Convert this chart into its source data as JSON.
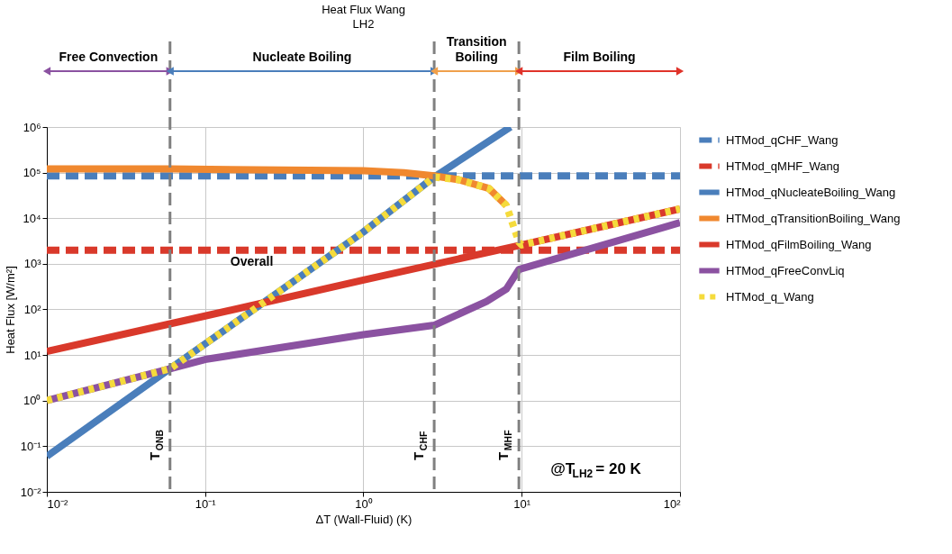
{
  "chart_data": {
    "type": "line",
    "title": "Heat Flux Wang",
    "subtitle": "LH2",
    "xlabel": "ΔT (Wall-Fluid) (K)",
    "ylabel": "Heat Flux [W/m²]",
    "log": "xy",
    "grid": true,
    "legend": "right",
    "xlim": [
      0.01,
      100
    ],
    "ylim": [
      0.01,
      1000000
    ],
    "xticks": [
      {
        "value": 0.01,
        "label": "10⁻²"
      },
      {
        "value": 0.1,
        "label": "10⁻¹"
      },
      {
        "value": 1,
        "label": "10⁰"
      },
      {
        "value": 10,
        "label": "10¹"
      },
      {
        "value": 100,
        "label": "10²"
      }
    ],
    "yticks": [
      {
        "value": 0.01,
        "label": "10⁻²"
      },
      {
        "value": 0.1,
        "label": "10⁻¹"
      },
      {
        "value": 1,
        "label": "10⁰"
      },
      {
        "value": 10,
        "label": "10¹"
      },
      {
        "value": 100,
        "label": "10²"
      },
      {
        "value": 1000,
        "label": "10³"
      },
      {
        "value": 10000,
        "label": "10⁴"
      },
      {
        "value": 100000,
        "label": "10⁵"
      },
      {
        "value": 1000000,
        "label": "10⁶"
      }
    ],
    "series": [
      {
        "name": "HTMod_qCHF_Wang",
        "color": "#4a7ebb",
        "line_style": "dashed",
        "x": [
          0.01,
          100
        ],
        "values": [
          85000,
          85000
        ]
      },
      {
        "name": "HTMod_qMHF_Wang",
        "color": "#d9392b",
        "line_style": "dashed",
        "x": [
          0.01,
          100
        ],
        "values": [
          2000,
          2000
        ]
      },
      {
        "name": "HTMod_qNucleateBoiling_Wang",
        "color": "#4a7ebb",
        "line_style": "solid",
        "x": [
          0.01,
          0.06,
          1,
          2.8,
          8.5
        ],
        "values": [
          0.06,
          5,
          5000,
          80000,
          1000000
        ]
      },
      {
        "name": "HTMod_qTransitionBoiling_Wang",
        "color": "#f0882f",
        "line_style": "solid",
        "x": [
          0.01,
          0.06,
          1,
          1.8,
          2.8,
          4,
          6.2,
          8
        ],
        "values": [
          120000,
          120000,
          110000,
          100000,
          85000,
          70000,
          45000,
          19000
        ]
      },
      {
        "name": "HTMod_qFilmBoiling_Wang",
        "color": "#d9392b",
        "line_style": "solid",
        "x": [
          0.01,
          0.1,
          1,
          10,
          100
        ],
        "values": [
          12,
          72,
          440,
          2600,
          16000
        ]
      },
      {
        "name": "HTMod_qFreeConvLiq",
        "color": "#8b52a1",
        "line_style": "solid",
        "x": [
          0.01,
          0.06,
          0.1,
          1,
          2.8,
          6,
          8,
          9.6,
          100
        ],
        "values": [
          1,
          5,
          8,
          28,
          45,
          150,
          280,
          750,
          8000
        ]
      },
      {
        "name": "HTMod_q_Wang",
        "color": "#f5db3c",
        "line_style": "dotted",
        "x": [
          0.01,
          0.06,
          1,
          2.8,
          4,
          6.2,
          8,
          9.6,
          10,
          100
        ],
        "values": [
          1,
          5,
          5000,
          80000,
          70000,
          45000,
          19000,
          3000,
          2600,
          16000
        ]
      }
    ],
    "ref_lines": [
      {
        "axis": "x",
        "value": 0.06,
        "label": "T$_{ONB}$",
        "color": "#808080",
        "line_style": "dashed"
      },
      {
        "axis": "x",
        "value": 2.8,
        "label": "T$_{CHF}$",
        "color": "#808080",
        "line_style": "dashed"
      },
      {
        "axis": "x",
        "value": 9.6,
        "label": "T$_{MHF}$",
        "color": "#808080",
        "line_style": "dashed"
      }
    ],
    "annotations": [
      "Free Convection",
      "Nucleate Boiling",
      "Transition Boiling",
      "Film Boiling",
      "@T$_{LH2}$ = 20 K",
      "Overall"
    ]
  }
}
